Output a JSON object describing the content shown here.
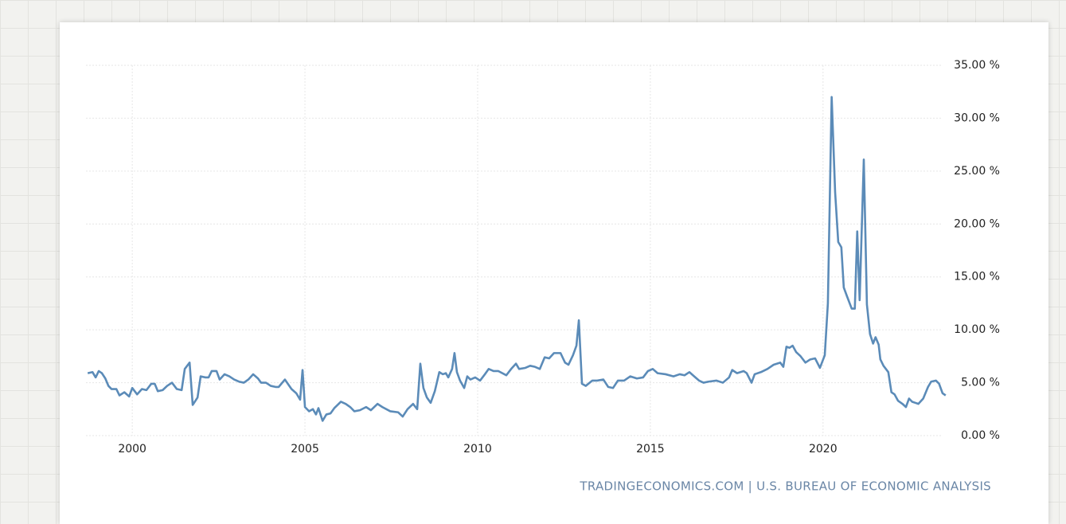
{
  "chart_data": {
    "type": "line",
    "source": "TRADINGECONOMICS.COM | U.S. BUREAU OF ECONOMIC ANALYSIS",
    "x": [
      1998.71,
      1998.85,
      1998.94,
      1999.03,
      1999.12,
      1999.22,
      1999.31,
      1999.4,
      1999.54,
      1999.63,
      1999.77,
      1999.91,
      2000.0,
      2000.14,
      2000.28,
      2000.41,
      2000.55,
      2000.65,
      2000.74,
      2000.88,
      2001.01,
      2001.15,
      2001.29,
      2001.43,
      2001.52,
      2001.66,
      2001.75,
      2001.89,
      2001.98,
      2002.12,
      2002.21,
      2002.3,
      2002.44,
      2002.53,
      2002.67,
      2002.81,
      2002.95,
      2003.09,
      2003.23,
      2003.36,
      2003.5,
      2003.64,
      2003.73,
      2003.87,
      2004.01,
      2004.15,
      2004.24,
      2004.42,
      2004.61,
      2004.75,
      2004.86,
      2004.93,
      2005.0,
      2005.12,
      2005.23,
      2005.32,
      2005.39,
      2005.51,
      2005.62,
      2005.74,
      2005.85,
      2006.04,
      2006.18,
      2006.31,
      2006.43,
      2006.59,
      2006.77,
      2006.91,
      2007.1,
      2007.24,
      2007.47,
      2007.7,
      2007.83,
      2007.97,
      2008.13,
      2008.25,
      2008.34,
      2008.43,
      2008.53,
      2008.64,
      2008.76,
      2008.89,
      2008.99,
      2009.08,
      2009.15,
      2009.26,
      2009.33,
      2009.4,
      2009.49,
      2009.61,
      2009.7,
      2009.79,
      2009.93,
      2010.07,
      2010.21,
      2010.32,
      2010.46,
      2010.6,
      2010.83,
      2010.97,
      2011.11,
      2011.2,
      2011.38,
      2011.52,
      2011.66,
      2011.8,
      2011.94,
      2012.07,
      2012.21,
      2012.4,
      2012.53,
      2012.63,
      2012.76,
      2012.86,
      2012.93,
      2013.02,
      2013.13,
      2013.32,
      2013.46,
      2013.64,
      2013.78,
      2013.92,
      2014.06,
      2014.24,
      2014.42,
      2014.61,
      2014.79,
      2014.93,
      2015.07,
      2015.21,
      2015.44,
      2015.67,
      2015.85,
      2015.99,
      2016.13,
      2016.27,
      2016.41,
      2016.54,
      2016.68,
      2016.91,
      2017.1,
      2017.28,
      2017.37,
      2017.51,
      2017.7,
      2017.79,
      2017.93,
      2018.02,
      2018.2,
      2018.39,
      2018.57,
      2018.76,
      2018.85,
      2018.94,
      2019.03,
      2019.12,
      2019.22,
      2019.35,
      2019.49,
      2019.63,
      2019.77,
      2019.91,
      2020.05,
      2020.14,
      2020.25,
      2020.35,
      2020.44,
      2020.53,
      2020.6,
      2020.69,
      2020.83,
      2020.92,
      2020.99,
      2021.06,
      2021.18,
      2021.27,
      2021.36,
      2021.45,
      2021.52,
      2021.61,
      2021.66,
      2021.75,
      2021.89,
      2021.98,
      2022.07,
      2022.17,
      2022.3,
      2022.4,
      2022.49,
      2022.58,
      2022.67,
      2022.76,
      2022.9,
      2023.04,
      2023.13,
      2023.27,
      2023.36,
      2023.46,
      2023.55
    ],
    "values": [
      5.9,
      6.0,
      5.5,
      6.1,
      5.9,
      5.4,
      4.7,
      4.4,
      4.4,
      3.8,
      4.1,
      3.7,
      4.5,
      3.9,
      4.4,
      4.3,
      4.9,
      4.9,
      4.2,
      4.3,
      4.7,
      5.0,
      4.4,
      4.3,
      6.3,
      6.9,
      2.9,
      3.6,
      5.6,
      5.5,
      5.5,
      6.1,
      6.1,
      5.3,
      5.8,
      5.6,
      5.3,
      5.1,
      5.0,
      5.3,
      5.8,
      5.4,
      5.0,
      5.0,
      4.7,
      4.6,
      4.6,
      5.3,
      4.4,
      4.0,
      3.4,
      6.2,
      2.7,
      2.3,
      2.5,
      2.0,
      2.6,
      1.4,
      2.0,
      2.1,
      2.6,
      3.2,
      3.0,
      2.7,
      2.3,
      2.4,
      2.7,
      2.4,
      3.0,
      2.7,
      2.3,
      2.2,
      1.8,
      2.5,
      3.0,
      2.5,
      6.8,
      4.5,
      3.6,
      3.1,
      4.2,
      6.0,
      5.8,
      5.9,
      5.5,
      6.3,
      7.8,
      6.0,
      5.2,
      4.5,
      5.6,
      5.3,
      5.5,
      5.2,
      5.8,
      6.3,
      6.1,
      6.1,
      5.7,
      6.3,
      6.8,
      6.3,
      6.4,
      6.6,
      6.5,
      6.3,
      7.4,
      7.3,
      7.8,
      7.8,
      6.9,
      6.7,
      7.6,
      8.5,
      10.9,
      4.9,
      4.7,
      5.2,
      5.2,
      5.3,
      4.6,
      4.5,
      5.2,
      5.2,
      5.6,
      5.4,
      5.5,
      6.1,
      6.3,
      5.9,
      5.8,
      5.6,
      5.8,
      5.7,
      6.0,
      5.6,
      5.2,
      5.0,
      5.1,
      5.2,
      5.0,
      5.5,
      6.2,
      5.9,
      6.1,
      5.9,
      5.0,
      5.8,
      6.0,
      6.3,
      6.7,
      6.9,
      6.5,
      8.4,
      8.3,
      8.5,
      7.9,
      7.5,
      6.9,
      7.2,
      7.3,
      6.4,
      7.6,
      12.5,
      32.0,
      23.0,
      18.3,
      17.8,
      14.0,
      13.2,
      12.0,
      12.0,
      19.3,
      12.8,
      26.1,
      12.4,
      9.6,
      8.7,
      9.3,
      8.6,
      7.2,
      6.6,
      6.0,
      4.1,
      3.9,
      3.3,
      3.0,
      2.7,
      3.5,
      3.2,
      3.1,
      3.0,
      3.5,
      4.6,
      5.1,
      5.2,
      4.9,
      4.0,
      3.8
    ],
    "color": "#5b8bb8",
    "xlim": [
      1998.66,
      2023.6
    ],
    "xticks": [
      2000,
      2005,
      2010,
      2015,
      2020
    ],
    "ylim": [
      0,
      35
    ],
    "yticks": [
      {
        "value": 0,
        "label": "0.00 %"
      },
      {
        "value": 5,
        "label": "5.00 %"
      },
      {
        "value": 10,
        "label": "10.00 %"
      },
      {
        "value": 15,
        "label": "15.00 %"
      },
      {
        "value": 20,
        "label": "20.00 %"
      },
      {
        "value": 25,
        "label": "25.00 %"
      },
      {
        "value": 30,
        "label": "30.00 %"
      },
      {
        "value": 35,
        "label": "35.00 %"
      }
    ],
    "grid": true
  }
}
